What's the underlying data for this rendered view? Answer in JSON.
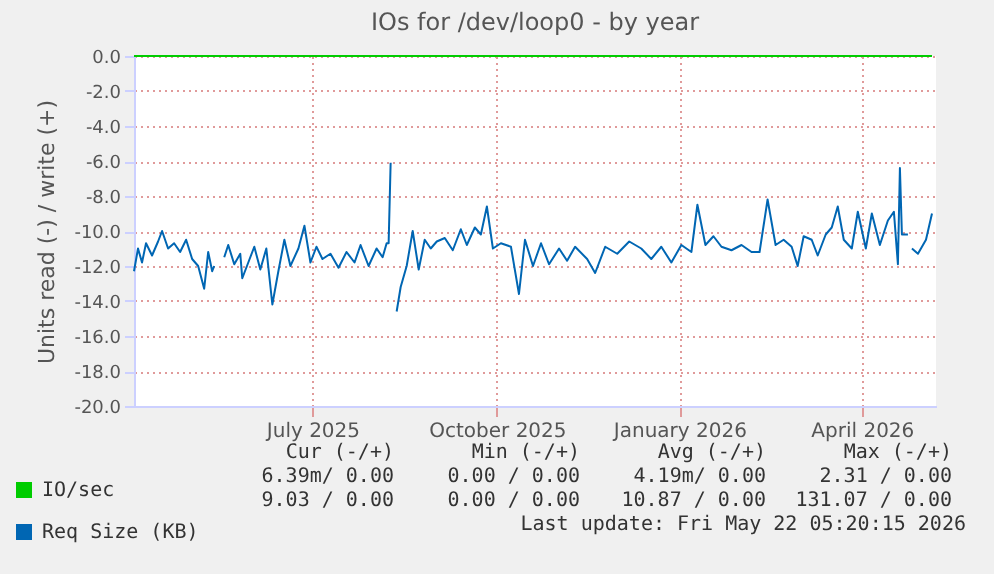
{
  "chart_data": {
    "type": "line",
    "title": "IOs for /dev/loop0 - by year",
    "ylabel": "Units read (-) / write (+)",
    "xlim": [
      "2025-04-17",
      "2026-05-22"
    ],
    "xticks": [
      {
        "value": "2025-07-15",
        "label": "July 2025"
      },
      {
        "value": "2025-10-15",
        "label": "October 2025"
      },
      {
        "value": "2026-01-14",
        "label": "January 2026"
      },
      {
        "value": "2026-04-15",
        "label": "April 2026"
      }
    ],
    "ylim": [
      -20,
      0
    ],
    "yticks": [
      {
        "value": -20,
        "label": "-20.0"
      },
      {
        "value": -18,
        "label": "-18.0"
      },
      {
        "value": -16,
        "label": "-16.0"
      },
      {
        "value": -14,
        "label": "-14.0"
      },
      {
        "value": -12,
        "label": "-12.0"
      },
      {
        "value": -10,
        "label": "-10.0"
      },
      {
        "value": -8,
        "label": "-8.0"
      },
      {
        "value": -6,
        "label": "-6.0"
      },
      {
        "value": -4,
        "label": "-4.0"
      },
      {
        "value": -2,
        "label": "-2.0"
      },
      {
        "value": 0,
        "label": "0.0"
      }
    ],
    "grid": true,
    "legend": "bottom left",
    "marker": "none",
    "line_style": "solid",
    "series": [
      {
        "name": "IO/sec",
        "color": "#00cc00",
        "x": [
          "2025-04-17",
          "2026-05-20"
        ],
        "values": [
          0,
          0
        ]
      },
      {
        "name": "Req Size (KB)",
        "color": "#0066b3",
        "x": [
          "2025-04-17",
          "2025-04-19",
          "2025-04-21",
          "2025-04-23",
          "2025-04-26",
          "2025-04-29",
          "2025-05-01",
          "2025-05-04",
          "2025-05-07",
          "2025-05-10",
          "2025-05-13",
          "2025-05-16",
          "2025-05-19",
          "2025-05-22",
          "2025-05-24",
          "2025-05-26",
          "2025-05-27",
          "2025-05-29",
          "2025-06-01",
          "2025-06-03",
          "2025-06-06",
          "2025-06-09",
          "2025-06-10",
          "2025-06-13",
          "2025-06-16",
          "2025-06-19",
          "2025-06-22",
          "2025-06-25",
          "2025-06-28",
          "2025-07-01",
          "2025-07-04",
          "2025-07-08",
          "2025-07-11",
          "2025-07-14",
          "2025-07-17",
          "2025-07-20",
          "2025-07-24",
          "2025-07-28",
          "2025-08-01",
          "2025-08-05",
          "2025-08-08",
          "2025-08-12",
          "2025-08-16",
          "2025-08-19",
          "2025-08-21",
          "2025-08-22",
          "2025-08-23",
          "2025-08-24",
          "2025-08-26",
          "2025-08-28",
          "2025-08-31",
          "2025-09-03",
          "2025-09-06",
          "2025-09-09",
          "2025-09-12",
          "2025-09-15",
          "2025-09-19",
          "2025-09-23",
          "2025-09-27",
          "2025-09-30",
          "2025-10-04",
          "2025-10-07",
          "2025-10-10",
          "2025-10-13",
          "2025-10-17",
          "2025-10-22",
          "2025-10-26",
          "2025-10-29",
          "2025-11-02",
          "2025-11-06",
          "2025-11-10",
          "2025-11-15",
          "2025-11-19",
          "2025-11-23",
          "2025-11-29",
          "2025-12-03",
          "2025-12-08",
          "2025-12-14",
          "2025-12-20",
          "2025-12-26",
          "2025-12-31",
          "2026-01-05",
          "2026-01-10",
          "2026-01-15",
          "2026-01-20",
          "2026-01-23",
          "2026-01-27",
          "2026-01-31",
          "2026-02-04",
          "2026-02-09",
          "2026-02-14",
          "2026-02-19",
          "2026-02-23",
          "2026-02-27",
          "2026-03-03",
          "2026-03-07",
          "2026-03-11",
          "2026-03-14",
          "2026-03-17",
          "2026-03-21",
          "2026-03-24",
          "2026-03-28",
          "2026-03-31",
          "2026-04-03",
          "2026-04-06",
          "2026-04-10",
          "2026-04-13",
          "2026-04-17",
          "2026-04-20",
          "2026-04-24",
          "2026-04-28",
          "2026-05-01",
          "2026-05-03",
          "2026-05-04",
          "2026-05-05",
          "2026-05-08",
          "2026-05-09",
          "2026-05-10",
          "2026-05-13",
          "2026-05-17",
          "2026-05-20"
        ],
        "values": [
          -12.3,
          -11.0,
          -11.8,
          -10.7,
          -11.4,
          -10.6,
          -10.0,
          -11.0,
          -10.7,
          -11.2,
          -10.5,
          -11.6,
          -12.0,
          -13.3,
          -11.2,
          -12.3,
          -12.0,
          null,
          -11.5,
          -10.8,
          -11.9,
          -11.3,
          -12.7,
          -11.8,
          -10.9,
          -12.2,
          -11.0,
          -14.2,
          -12.3,
          -10.5,
          -12.0,
          -11.0,
          -9.7,
          -11.8,
          -10.9,
          -11.6,
          -11.3,
          -12.1,
          -11.2,
          -11.8,
          -10.8,
          -12.0,
          -11.0,
          -11.5,
          -10.7,
          -10.7,
          -6.1,
          null,
          -14.6,
          -13.2,
          -12.0,
          -10.0,
          -12.2,
          -10.5,
          -11.0,
          -10.6,
          -10.4,
          -11.1,
          -9.9,
          -10.8,
          -9.8,
          -10.2,
          -8.6,
          -11.0,
          -10.7,
          -10.9,
          -13.6,
          -10.5,
          -12.0,
          -10.7,
          -11.9,
          -11.0,
          -11.7,
          -10.9,
          -11.6,
          -12.4,
          -10.9,
          -11.3,
          -10.6,
          -11.0,
          -11.6,
          -10.9,
          -11.8,
          -10.8,
          -11.2,
          -8.5,
          -10.8,
          -10.3,
          -10.9,
          -11.1,
          -10.8,
          -11.2,
          -11.2,
          -8.2,
          -10.8,
          -10.5,
          -10.9,
          -12.0,
          -10.3,
          -10.5,
          -11.4,
          -10.2,
          -9.8,
          -8.6,
          -10.5,
          -11.0,
          -8.9,
          -11.0,
          -9.0,
          -10.8,
          -9.4,
          -8.9,
          -11.9,
          -6.4,
          -10.2,
          -10.2,
          null,
          -11.0,
          -11.3,
          -10.5,
          -9.0
        ]
      }
    ],
    "annotations": [
      "Cur (-/+)",
      "Min (-/+)",
      "Avg (-/+)",
      "Max (-/+)",
      "6.39m/ 0.00",
      "0.00 / 0.00",
      "4.19m/ 0.00",
      "2.31 / 0.00",
      "9.03 / 0.00",
      "0.00 / 0.00",
      "10.87 / 0.00",
      "131.07 / 0.00",
      "Last update: Fri May 22 05:20:15 2026"
    ]
  }
}
